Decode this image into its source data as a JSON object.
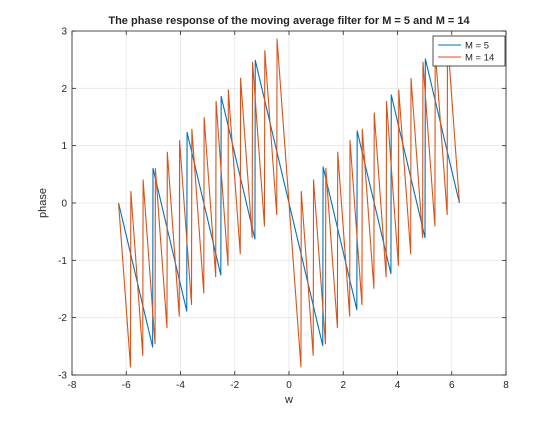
{
  "chart_data": {
    "type": "line",
    "title": "The phase response of the moving average filter for M = 5 and M = 14",
    "xlabel": "w",
    "ylabel": "phase",
    "xlim": [
      -8,
      8
    ],
    "ylim": [
      -3,
      3
    ],
    "xticks": [
      -8,
      -6,
      -4,
      -2,
      0,
      2,
      4,
      6,
      8
    ],
    "yticks": [
      -3,
      -2,
      -1,
      0,
      1,
      2,
      3
    ],
    "xtick_labels": [
      "-8",
      "-6",
      "-4",
      "-2",
      "0",
      "2",
      "4",
      "6",
      "8"
    ],
    "ytick_labels": [
      "-3",
      "-2",
      "-1",
      "0",
      "1",
      "2",
      "3"
    ],
    "grid": true,
    "legend_position": "top-right",
    "series": [
      {
        "name": "M = 5",
        "color": "#0072BD",
        "filter_length": 5,
        "w_range": [
          -6.2832,
          6.2832
        ]
      },
      {
        "name": "M = 14",
        "color": "#D95319",
        "filter_length": 14,
        "w_range": [
          -6.2832,
          6.2832
        ]
      }
    ]
  }
}
